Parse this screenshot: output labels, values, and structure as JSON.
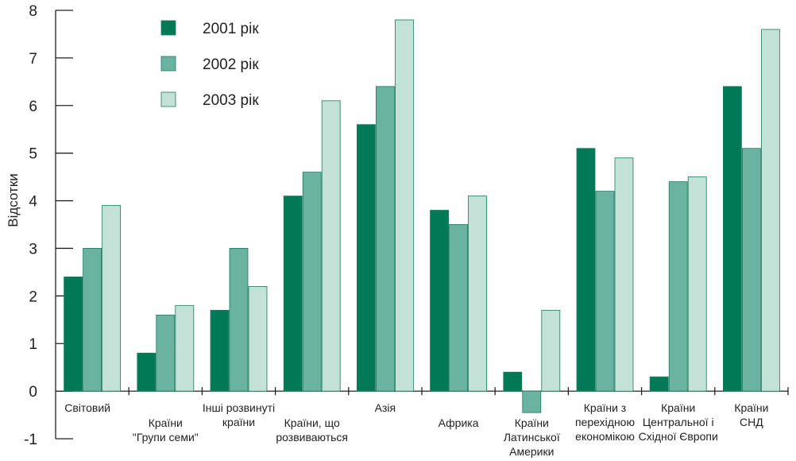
{
  "chart_data": {
    "type": "bar",
    "ylabel": "Відсотки",
    "ylim": [
      -1,
      8
    ],
    "yticks": [
      "-1",
      "0",
      "1",
      "2",
      "3",
      "4",
      "5",
      "6",
      "7",
      "8"
    ],
    "grid": false,
    "legend_position": "top-left",
    "categories": [
      [
        "Світовий"
      ],
      [
        "Країни",
        "\"Групи семи\""
      ],
      [
        "Інші розвинуті",
        "країни"
      ],
      [
        "Країни, що",
        "розвиваються"
      ],
      [
        "Азія"
      ],
      [
        "Африка"
      ],
      [
        "Країни",
        "Латинської",
        "Америки"
      ],
      [
        "Країни з",
        "перехідною",
        "економікою"
      ],
      [
        "Країни",
        "Центральної і",
        "Східної Європи"
      ],
      [
        "Країни",
        "СНД"
      ]
    ],
    "series": [
      {
        "name": "2001 рік",
        "color": "#007a56",
        "values": [
          2.4,
          0.8,
          1.7,
          4.1,
          5.6,
          3.8,
          0.4,
          5.1,
          0.3,
          6.4
        ]
      },
      {
        "name": "2002 рік",
        "color": "#6ab3a0",
        "values": [
          3.0,
          1.6,
          3.0,
          4.6,
          6.4,
          3.5,
          -0.45,
          4.2,
          4.4,
          5.1
        ]
      },
      {
        "name": "2003 рік",
        "color": "#c3e1d7",
        "values": [
          3.9,
          1.8,
          2.2,
          6.1,
          7.8,
          4.1,
          1.7,
          4.9,
          4.5,
          7.6
        ]
      }
    ]
  }
}
